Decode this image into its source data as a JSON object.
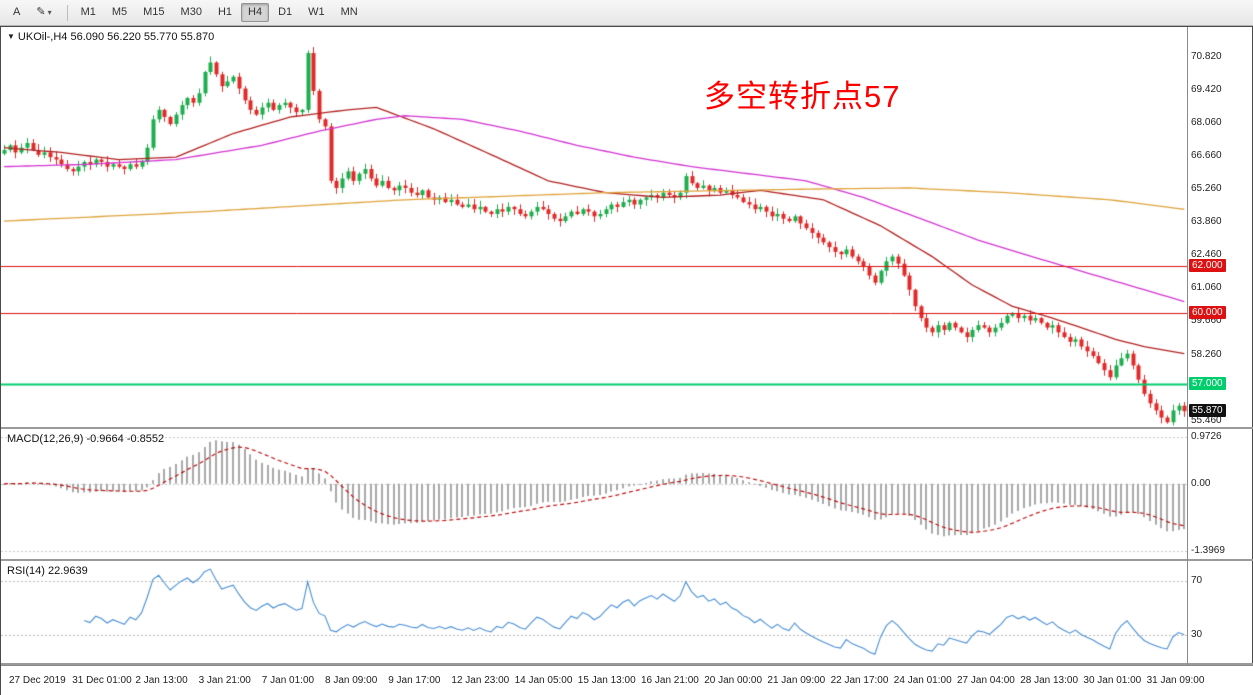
{
  "toolbar": {
    "tools": [
      {
        "id": "cursor",
        "label": "A"
      },
      {
        "id": "draw",
        "label": "✎",
        "caret": "▾"
      }
    ],
    "timeframes": [
      {
        "label": "M1"
      },
      {
        "label": "M5"
      },
      {
        "label": "M15"
      },
      {
        "label": "M30"
      },
      {
        "label": "H1"
      },
      {
        "label": "H4",
        "active": true
      },
      {
        "label": "D1"
      },
      {
        "label": "W1"
      },
      {
        "label": "MN"
      }
    ]
  },
  "chart": {
    "symbol_ohlc": "UKOil-,H4 56.090 56.220 55.770 55.870",
    "annotation": {
      "text": "多空转折点57",
      "color": "#ff0000"
    }
  },
  "chart_data": {
    "type": "candlestick",
    "symbol": "UKOil-",
    "timeframe": "H4",
    "title": "UKOil-,H4 56.090 56.220 55.770 55.870",
    "y_range": [
      55.2,
      72.1
    ],
    "price_axis_ticks": [
      {
        "value": 70.82,
        "label": "70.820"
      },
      {
        "value": 69.42,
        "label": "69.420"
      },
      {
        "value": 68.06,
        "label": "68.060"
      },
      {
        "value": 66.66,
        "label": "66.660"
      },
      {
        "value": 65.26,
        "label": "65.260"
      },
      {
        "value": 63.86,
        "label": "63.860"
      },
      {
        "value": 62.46,
        "label": "62.460"
      },
      {
        "value": 61.06,
        "label": "61.060"
      },
      {
        "value": 59.66,
        "label": "59.660"
      },
      {
        "value": 58.26,
        "label": "58.260"
      },
      {
        "value": 55.46,
        "label": "55.460"
      }
    ],
    "x_labels": [
      "27 Dec 2019",
      "31 Dec 01:00",
      "2 Jan 13:00",
      "3 Jan 21:00",
      "7 Jan 01:00",
      "8 Jan 09:00",
      "9 Jan 17:00",
      "12 Jan 23:00",
      "14 Jan 05:00",
      "15 Jan 13:00",
      "16 Jan 21:00",
      "20 Jan 00:00",
      "21 Jan 09:00",
      "22 Jan 17:00",
      "24 Jan 01:00",
      "27 Jan 04:00",
      "28 Jan 13:00",
      "30 Jan 01:00",
      "31 Jan 09:00"
    ],
    "closes": [
      66.9,
      67.1,
      66.8,
      67.0,
      67.2,
      66.9,
      66.7,
      66.8,
      66.6,
      66.5,
      66.3,
      66.1,
      66.0,
      66.2,
      66.4,
      66.3,
      66.5,
      66.4,
      66.2,
      66.3,
      66.2,
      66.1,
      66.3,
      66.2,
      66.4,
      67.0,
      68.2,
      68.6,
      68.3,
      68.0,
      68.4,
      68.8,
      69.1,
      68.9,
      69.3,
      70.2,
      70.6,
      70.1,
      69.6,
      69.8,
      70.0,
      69.5,
      69.0,
      68.6,
      68.4,
      68.7,
      68.9,
      68.6,
      68.8,
      68.9,
      68.7,
      68.5,
      68.6,
      71.0,
      69.4,
      68.2,
      67.9,
      65.6,
      65.3,
      65.7,
      66.0,
      65.6,
      65.9,
      66.1,
      65.7,
      65.4,
      65.6,
      65.3,
      65.2,
      65.4,
      65.3,
      65.1,
      65.0,
      65.2,
      64.9,
      64.8,
      64.9,
      64.7,
      64.8,
      64.6,
      64.5,
      64.6,
      64.4,
      64.5,
      64.3,
      64.2,
      64.4,
      64.3,
      64.5,
      64.4,
      64.2,
      64.1,
      64.3,
      64.5,
      64.4,
      64.2,
      64.0,
      63.9,
      64.1,
      64.3,
      64.2,
      64.4,
      64.3,
      64.1,
      64.2,
      64.4,
      64.6,
      64.5,
      64.7,
      64.8,
      64.6,
      64.8,
      64.9,
      65.0,
      64.9,
      65.1,
      65.0,
      64.9,
      65.1,
      65.8,
      65.5,
      65.3,
      65.4,
      65.2,
      65.3,
      65.1,
      65.2,
      65.0,
      64.9,
      64.7,
      64.6,
      64.4,
      64.5,
      64.3,
      64.1,
      64.2,
      64.0,
      63.9,
      64.1,
      63.8,
      63.6,
      63.4,
      63.2,
      63.0,
      62.8,
      62.6,
      62.5,
      62.7,
      62.4,
      62.2,
      62.0,
      61.6,
      61.3,
      61.8,
      62.2,
      62.4,
      62.1,
      61.6,
      61.0,
      60.3,
      59.8,
      59.4,
      59.2,
      59.5,
      59.3,
      59.6,
      59.4,
      59.2,
      59.0,
      59.3,
      59.5,
      59.4,
      59.2,
      59.4,
      59.6,
      59.9,
      60.0,
      59.8,
      59.9,
      59.7,
      59.8,
      59.6,
      59.4,
      59.5,
      59.2,
      59.0,
      58.8,
      58.9,
      58.6,
      58.4,
      58.2,
      57.9,
      57.6,
      57.3,
      57.8,
      58.1,
      58.3,
      57.8,
      57.2,
      56.6,
      56.2,
      55.9,
      55.6,
      55.4,
      55.9,
      56.1,
      55.87
    ],
    "candle_colors": {
      "up": "#1fae4e",
      "down": "#e12b2b"
    },
    "overlays": [
      {
        "name": "ma-fast",
        "color": "#b22222",
        "points": [
          [
            0,
            67.0
          ],
          [
            10,
            66.8
          ],
          [
            20,
            66.5
          ],
          [
            30,
            66.6
          ],
          [
            40,
            67.6
          ],
          [
            50,
            68.3
          ],
          [
            60,
            68.6
          ],
          [
            65,
            68.7
          ],
          [
            75,
            67.8
          ],
          [
            86,
            66.6
          ],
          [
            95,
            65.6
          ],
          [
            105,
            65.1
          ],
          [
            115,
            64.9
          ],
          [
            125,
            65.0
          ],
          [
            132,
            65.2
          ],
          [
            143,
            64.8
          ],
          [
            153,
            63.7
          ],
          [
            162,
            62.4
          ],
          [
            169,
            61.2
          ],
          [
            176,
            60.3
          ],
          [
            183,
            59.8
          ],
          [
            188,
            59.4
          ],
          [
            194,
            58.9
          ],
          [
            199,
            58.6
          ],
          [
            206,
            58.3
          ]
        ]
      },
      {
        "name": "ma-medium",
        "color": "#d335d3",
        "points": [
          [
            0,
            66.2
          ],
          [
            15,
            66.3
          ],
          [
            30,
            66.5
          ],
          [
            45,
            67.1
          ],
          [
            55,
            67.7
          ],
          [
            65,
            68.2
          ],
          [
            70,
            68.35
          ],
          [
            80,
            68.2
          ],
          [
            90,
            67.7
          ],
          [
            100,
            67.1
          ],
          [
            110,
            66.6
          ],
          [
            120,
            66.2
          ],
          [
            130,
            65.9
          ],
          [
            140,
            65.6
          ],
          [
            150,
            64.9
          ],
          [
            160,
            64.0
          ],
          [
            170,
            63.1
          ],
          [
            178,
            62.5
          ],
          [
            185,
            62.0
          ],
          [
            192,
            61.5
          ],
          [
            199,
            61.0
          ],
          [
            206,
            60.5
          ]
        ]
      },
      {
        "name": "ma-slow",
        "color": "#dfa43c",
        "points": [
          [
            0,
            63.9
          ],
          [
            35,
            64.3
          ],
          [
            70,
            64.8
          ],
          [
            105,
            65.1
          ],
          [
            140,
            65.25
          ],
          [
            158,
            65.3
          ],
          [
            175,
            65.1
          ],
          [
            193,
            64.8
          ],
          [
            206,
            64.4
          ]
        ]
      }
    ],
    "hlines": [
      {
        "value": 62.0,
        "label": "62.000",
        "color": "#dd1111",
        "width": 1
      },
      {
        "value": 60.0,
        "label": "60.000",
        "color": "#dd1111",
        "width": 1
      },
      {
        "value": 57.0,
        "label": "57.000",
        "color": "#00ce6d",
        "width": 2
      }
    ],
    "current_price": {
      "value": 55.87,
      "label": "55.870",
      "badge_color": "#111111"
    },
    "indicators": {
      "macd": {
        "label": "MACD(12,26,9) -0.9664 -0.8552",
        "fast": 12,
        "slow": 26,
        "signal": 9,
        "scale_max": 0.9726,
        "scale_min": -1.3969,
        "axis_ticks": [
          {
            "value": 0.9726,
            "label": "0.9726"
          },
          {
            "value": 0,
            "label": "0.00"
          },
          {
            "value": -1.3969,
            "label": "-1.3969"
          }
        ],
        "histogram_color": "#a9a9a9",
        "signal_color": "#c11111"
      },
      "rsi": {
        "label": "RSI(14) 22.9639",
        "period": 14,
        "levels": [
          {
            "value": 70,
            "label": "70"
          },
          {
            "value": 30,
            "label": "30"
          }
        ],
        "line_color": "#4a8fd3",
        "scale_max": 85,
        "scale_min": 9
      }
    }
  }
}
